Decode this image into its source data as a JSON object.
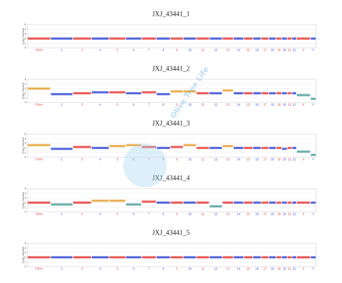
{
  "chart_data": [
    {
      "type": "copy-number",
      "title": "JXJ_43441_1",
      "y_label": "Copy Number",
      "categories": [
        "Chrm",
        "2",
        "3",
        "4",
        "5",
        "6",
        "7",
        "8",
        "9",
        "10",
        "11",
        "12",
        "13",
        "14",
        "15",
        "16",
        "17",
        "18",
        "19",
        "20",
        "21",
        "22",
        "X",
        "Y"
      ],
      "values": [
        2,
        2,
        2,
        2,
        2,
        2,
        2,
        2,
        2,
        2,
        2,
        2,
        2,
        2,
        2,
        2,
        2,
        2,
        2,
        2,
        2,
        2,
        2,
        2
      ],
      "ylim": [
        0,
        5
      ],
      "yticks": [
        0,
        1,
        2,
        3,
        4,
        5
      ],
      "grid": true,
      "colors": [
        "#e8413c",
        "#3b4fd8"
      ],
      "gain_color": "#e8a33a",
      "loss_color": "#4fa3a0"
    },
    {
      "type": "copy-number",
      "title": "JXJ_43441_2",
      "y_label": "Copy Number",
      "categories": [
        "Chrm",
        "2",
        "3",
        "4",
        "5",
        "6",
        "7",
        "8",
        "9",
        "10",
        "11",
        "12",
        "13",
        "14",
        "15",
        "16",
        "17",
        "18",
        "19",
        "20",
        "21",
        "22",
        "X",
        "Y"
      ],
      "values": [
        3,
        1.8,
        2,
        2.2,
        2.2,
        2,
        2.2,
        1.8,
        2.4,
        2.4,
        2,
        2,
        2.6,
        2,
        2,
        2,
        2,
        2,
        2,
        2,
        2,
        2,
        1.6,
        0.8
      ],
      "ylim": [
        0,
        5
      ],
      "yticks": [
        0,
        1,
        2,
        3,
        4,
        5
      ],
      "grid": true,
      "colors": [
        "#e8413c",
        "#3b4fd8"
      ],
      "gain_color": "#e8a33a",
      "loss_color": "#4fa3a0"
    },
    {
      "type": "copy-number",
      "title": "JXJ_43441_3",
      "y_label": "Copy Number",
      "categories": [
        "Chrm",
        "2",
        "3",
        "4",
        "5",
        "6",
        "7",
        "8",
        "9",
        "10",
        "11",
        "12",
        "13",
        "14",
        "15",
        "16",
        "17",
        "18",
        "19",
        "20",
        "21",
        "22",
        "X",
        "Y"
      ],
      "values": [
        2.6,
        1.8,
        2.2,
        2,
        2.4,
        2.6,
        2.2,
        2,
        2.2,
        2.6,
        2,
        2,
        2.4,
        2,
        2,
        2,
        2,
        2,
        2,
        1.8,
        2,
        2,
        1.2,
        0.5
      ],
      "ylim": [
        0,
        5
      ],
      "yticks": [
        0,
        1,
        2,
        3,
        4,
        5
      ],
      "grid": true,
      "colors": [
        "#e8413c",
        "#3b4fd8"
      ],
      "gain_color": "#e8a33a",
      "loss_color": "#4fa3a0"
    },
    {
      "type": "copy-number",
      "title": "JXJ_43441_4",
      "y_label": "Copy Number",
      "categories": [
        "Chrm",
        "2",
        "3",
        "4",
        "5",
        "6",
        "7",
        "8",
        "9",
        "10",
        "11",
        "12",
        "13",
        "14",
        "15",
        "16",
        "17",
        "18",
        "19",
        "20",
        "21",
        "22",
        "X",
        "Y"
      ],
      "values": [
        2,
        1.6,
        2,
        2.4,
        2.4,
        1.6,
        2.2,
        2,
        2,
        2,
        2,
        1.2,
        2,
        2,
        2,
        2,
        2,
        2,
        2,
        2,
        2,
        2,
        2,
        2
      ],
      "ylim": [
        0,
        5
      ],
      "yticks": [
        0,
        1,
        2,
        3,
        4,
        5
      ],
      "grid": true,
      "colors": [
        "#e8413c",
        "#3b4fd8"
      ],
      "gain_color": "#e8a33a",
      "loss_color": "#4fa3a0"
    },
    {
      "type": "copy-number",
      "title": "JXJ_43441_5",
      "y_label": "Copy Number",
      "categories": [
        "Chrm",
        "2",
        "3",
        "4",
        "5",
        "6",
        "7",
        "8",
        "9",
        "10",
        "11",
        "12",
        "13",
        "14",
        "15",
        "16",
        "17",
        "18",
        "19",
        "20",
        "21",
        "22",
        "X",
        "Y"
      ],
      "values": [
        2,
        2,
        2,
        2,
        2,
        2,
        2,
        2,
        2,
        2,
        2,
        2,
        2,
        2,
        2,
        2,
        2,
        2,
        2,
        2,
        2,
        2,
        2,
        2
      ],
      "ylim": [
        0,
        5
      ],
      "yticks": [
        0,
        1,
        2,
        3,
        4,
        5
      ],
      "grid": true,
      "colors": [
        "#e8413c",
        "#3b4fd8"
      ],
      "gain_color": "#e8a33a",
      "loss_color": "#4fa3a0"
    }
  ],
  "watermark": "Olive Tree Life"
}
